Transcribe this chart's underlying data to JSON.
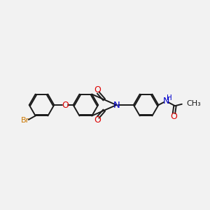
{
  "bg_color": "#f2f2f2",
  "bond_color": "#1a1a1a",
  "bond_width": 1.4,
  "figsize": [
    3.0,
    3.0
  ],
  "dpi": 100,
  "xlim": [
    -4.8,
    4.8
  ],
  "ylim": [
    -2.2,
    2.2
  ],
  "r_hex": 0.58,
  "dbo": 0.058,
  "br_color": "#cc7700",
  "o_color": "#dd0000",
  "n_color": "#0000cc",
  "nh_color": "#336666"
}
